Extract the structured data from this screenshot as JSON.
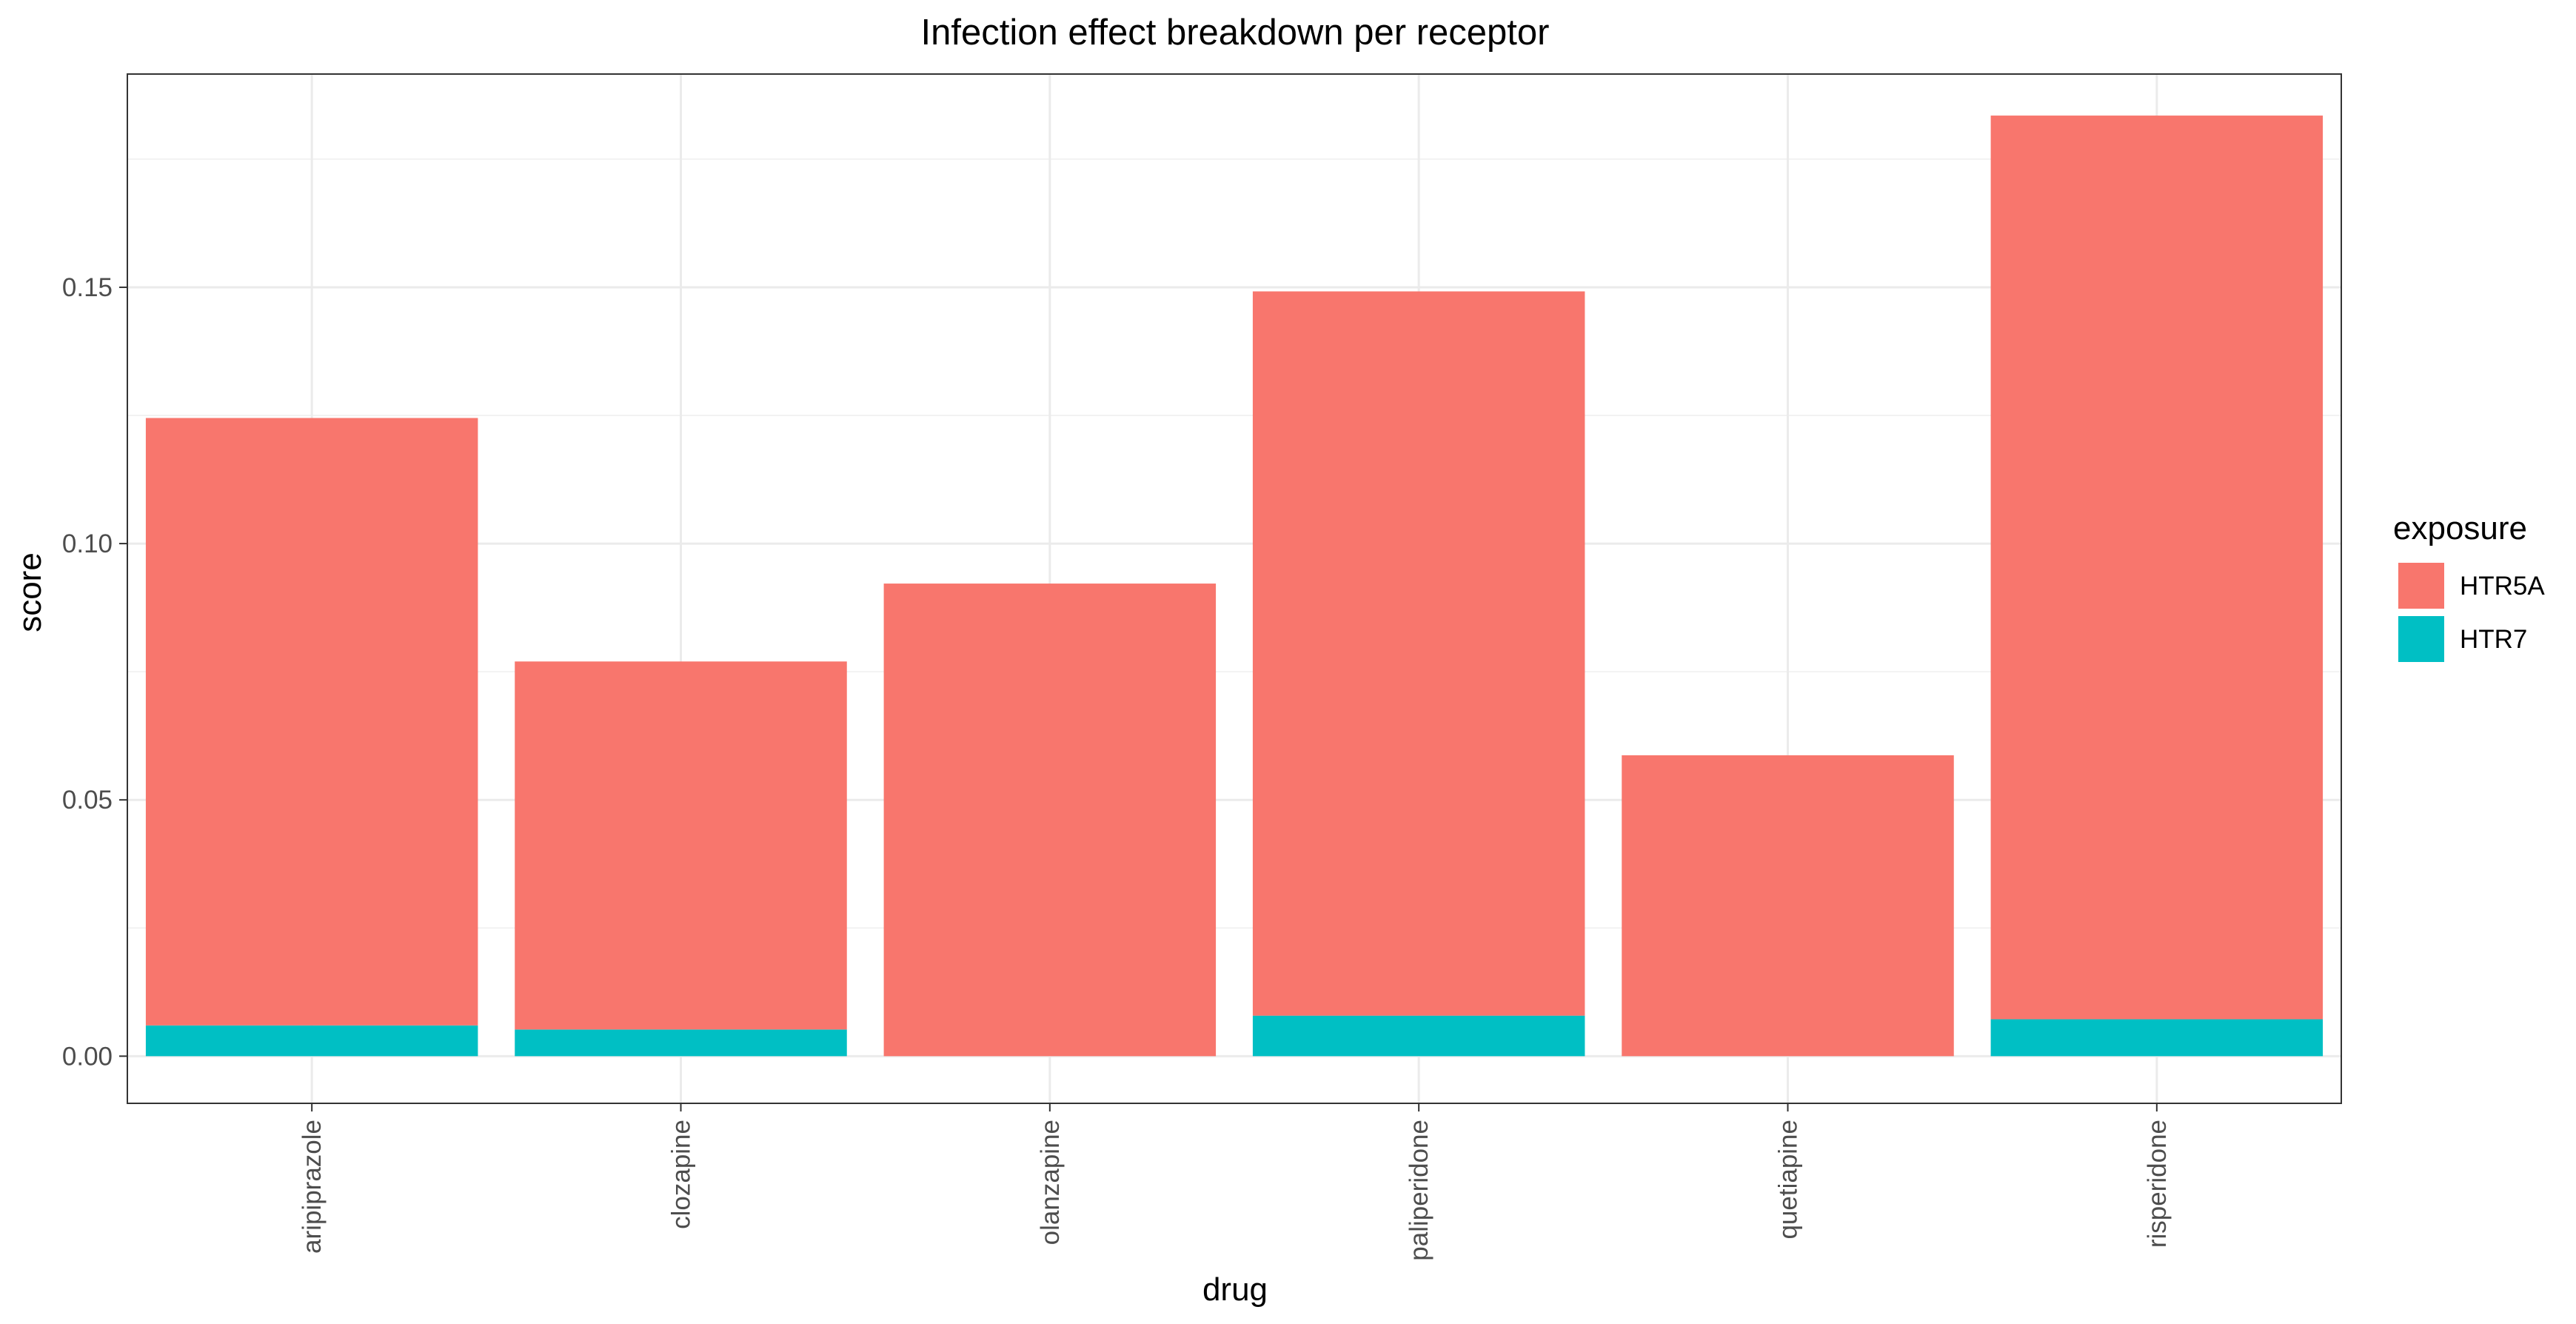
{
  "chart_data": {
    "type": "bar",
    "stacked": true,
    "title": "Infection effect breakdown per receptor",
    "xlabel": "drug",
    "ylabel": "score",
    "categories": [
      "aripiprazole",
      "clozapine",
      "olanzapine",
      "paliperidone",
      "quetiapine",
      "risperidone"
    ],
    "series": [
      {
        "name": "HTR7",
        "color": "#00BFC4",
        "values": [
          0.006,
          0.0052,
          0.0,
          0.0079,
          0.0,
          0.0072
        ]
      },
      {
        "name": "HTR5A",
        "color": "#F8766D",
        "values": [
          0.1185,
          0.0718,
          0.0922,
          0.1413,
          0.0587,
          0.1763
        ]
      }
    ],
    "ylim": [
      -0.0092,
      0.1916
    ],
    "yticks": [
      0.0,
      0.05,
      0.1,
      0.15
    ],
    "ytick_labels": [
      "0.00",
      "0.05",
      "0.10",
      "0.15"
    ],
    "legend": {
      "title": "exposure",
      "position": "right",
      "entries": [
        {
          "label": "HTR5A",
          "color": "#F8766D"
        },
        {
          "label": "HTR7",
          "color": "#00BFC4"
        }
      ]
    },
    "grid": true,
    "theme": "bw"
  }
}
